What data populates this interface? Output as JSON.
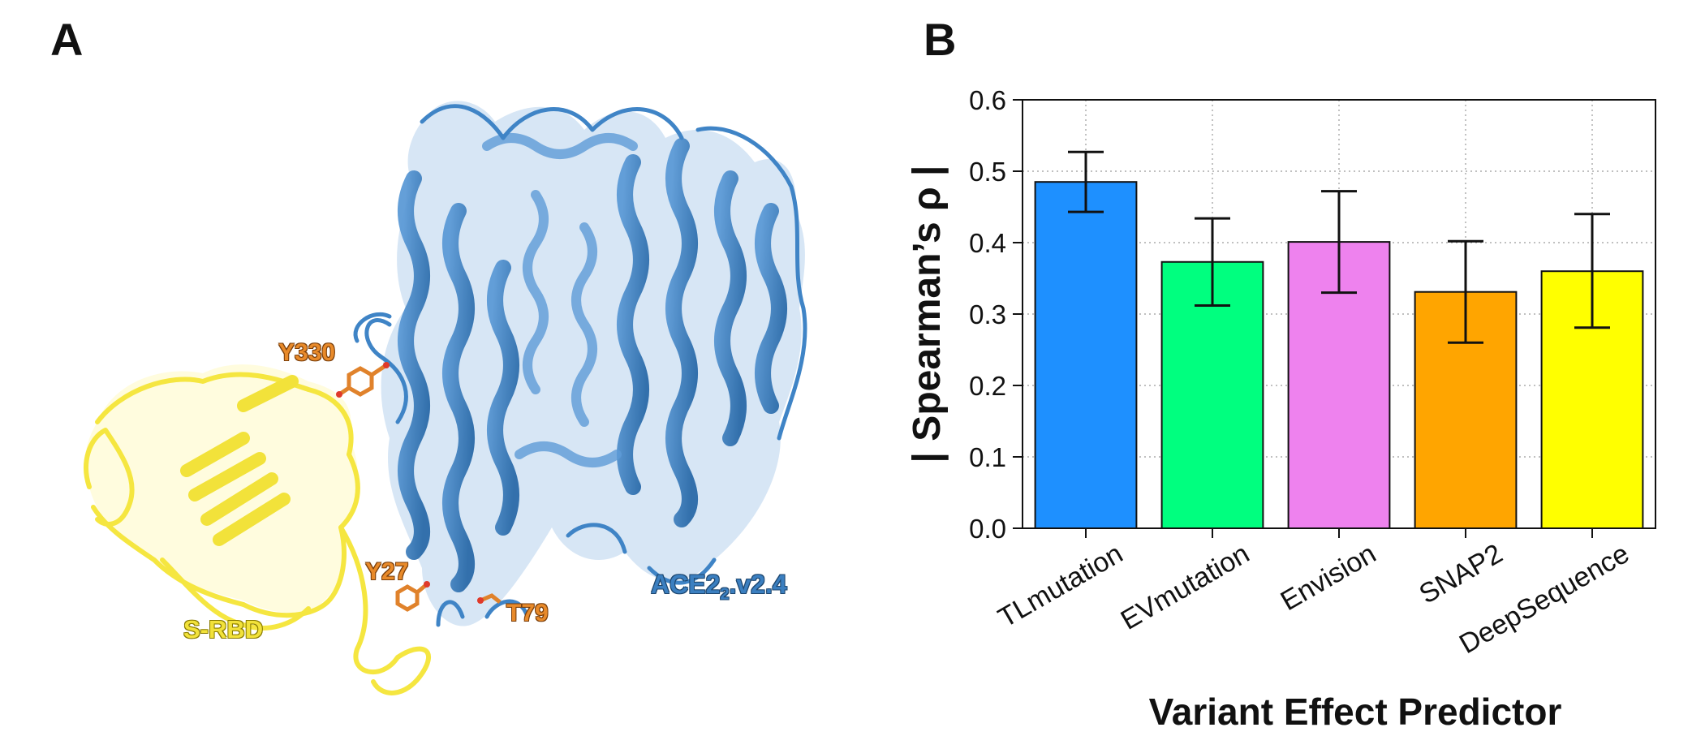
{
  "panel_a": {
    "letter": "A",
    "labels": {
      "y330": "Y330",
      "y27": "Y27",
      "t79": "T79",
      "s_rbd": "S-RBD",
      "ace2_main": "ACE2",
      "ace2_sub": "2",
      "ace2_suffix": ".v2.4"
    },
    "colors": {
      "ace2": "#3b7fc0",
      "s_rbd": "#f2e23a",
      "residues": "#e88a2a"
    }
  },
  "panel_b": {
    "letter": "B"
  },
  "chart_data": {
    "type": "bar",
    "title": "",
    "xlabel": "Variant Effect Predictor",
    "ylabel": "| Spearman’s ρ |",
    "categories": [
      "TLmutation",
      "EVmutation",
      "Envision",
      "SNAP2",
      "DeepSequence"
    ],
    "values": [
      0.485,
      0.373,
      0.401,
      0.331,
      0.36
    ],
    "error_low": [
      0.443,
      0.312,
      0.33,
      0.26,
      0.281
    ],
    "error_high": [
      0.527,
      0.434,
      0.472,
      0.402,
      0.44
    ],
    "colors": [
      "#1e90ff",
      "#00ff7f",
      "#ee82ee",
      "#ffa500",
      "#ffff00"
    ],
    "ylim": [
      0.0,
      0.6
    ],
    "yticks": [
      "0.0",
      "0.1",
      "0.2",
      "0.3",
      "0.4",
      "0.5",
      "0.6"
    ],
    "grid": true
  }
}
